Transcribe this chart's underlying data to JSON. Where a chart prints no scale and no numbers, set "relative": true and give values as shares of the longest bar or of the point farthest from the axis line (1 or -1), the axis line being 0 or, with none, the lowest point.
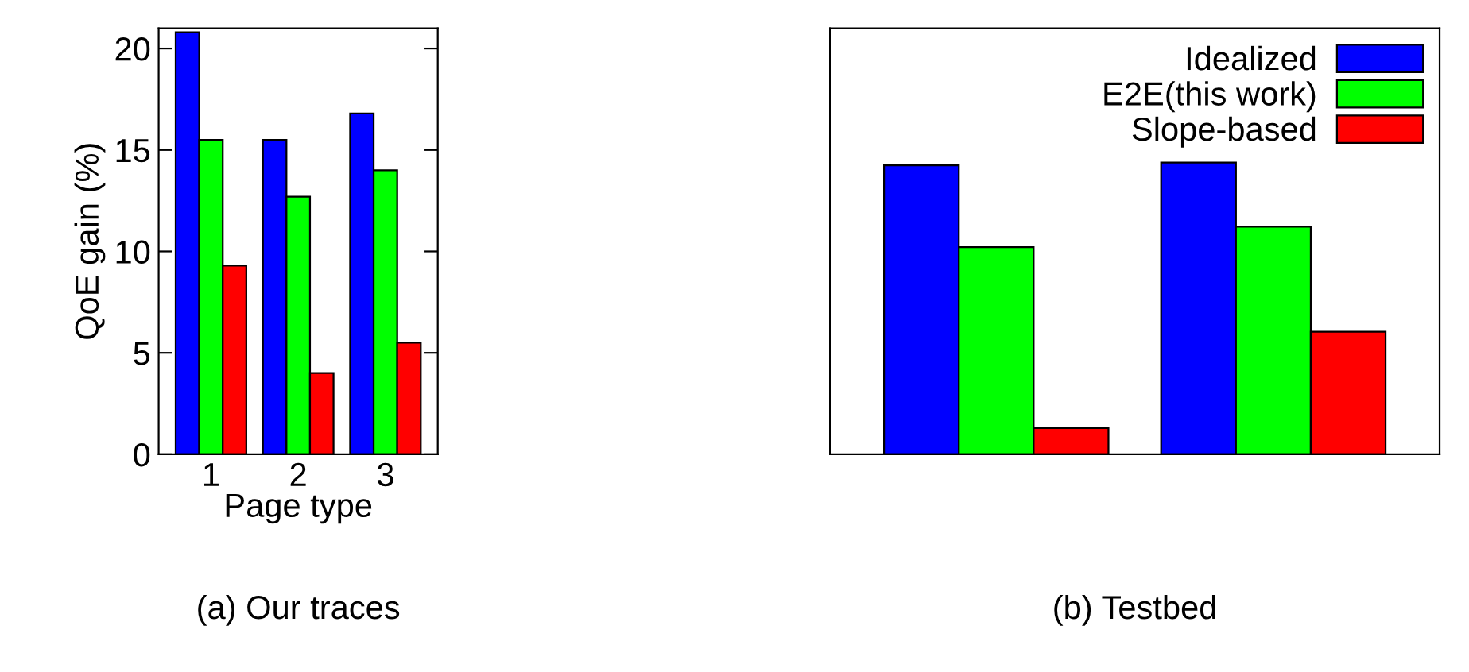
{
  "chart_data": [
    {
      "type": "bar",
      "title": "(a) Our traces",
      "xlabel": "Page type",
      "ylabel": "QoE gain (%)",
      "categories": [
        "1",
        "2",
        "3"
      ],
      "series": [
        {
          "color": "#0000ff",
          "values": [
            20.8,
            15.5,
            16.8
          ]
        },
        {
          "color": "#00ff00",
          "values": [
            15.5,
            12.7,
            14.0
          ]
        },
        {
          "color": "#ff0000",
          "values": [
            9.3,
            4.0,
            5.5
          ]
        }
      ],
      "ylim": [
        0,
        21
      ],
      "yticks": [
        0,
        5,
        10,
        15,
        20
      ],
      "grid": false
    },
    {
      "type": "bar",
      "title": "(b) Testbed",
      "categories": [
        null,
        null
      ],
      "series": [
        {
          "name": "Idealized",
          "color": "#0000ff",
          "values": [
            0.99,
            1
          ]
        },
        {
          "name": "E2E(this work)",
          "color": "#00ff00",
          "values": [
            0.71,
            0.78
          ]
        },
        {
          "name": "Slope-based",
          "color": "#ff0000",
          "values": [
            0.09,
            0.42
          ]
        }
      ],
      "relative": true,
      "grid": false,
      "legend": "top right"
    }
  ]
}
